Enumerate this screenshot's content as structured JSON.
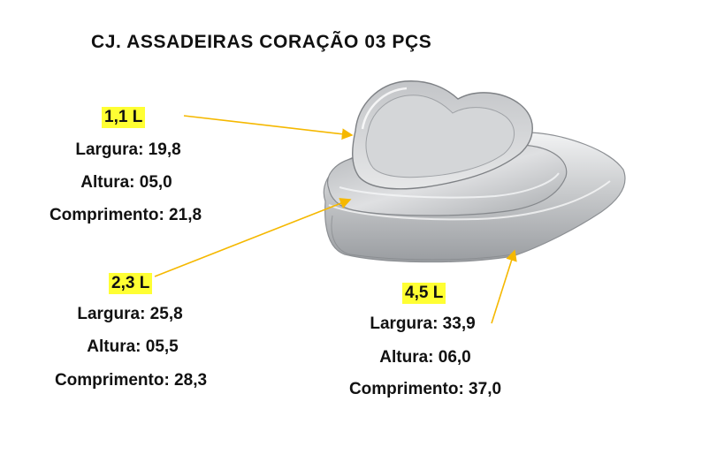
{
  "title": "CJ. ASSADEIRAS CORAÇÃO 03 PÇS",
  "sets": [
    {
      "volume": "1,1 L",
      "largura": "Largura: 19,8",
      "altura": "Altura: 05,0",
      "comprimento": "Comprimento: 21,8"
    },
    {
      "volume": "2,3 L",
      "largura": "Largura: 25,8",
      "altura": "Altura: 05,5",
      "comprimento": "Comprimento: 28,3"
    },
    {
      "volume": "4,5 L",
      "largura": "Largura: 33,9",
      "altura": "Altura: 06,0",
      "comprimento": "Comprimento: 37,0"
    }
  ],
  "colors": {
    "highlight": "#ffff33",
    "arrow": "#f5b800",
    "steel_light": "#e8e9ea",
    "steel_dark": "#8e9196"
  }
}
